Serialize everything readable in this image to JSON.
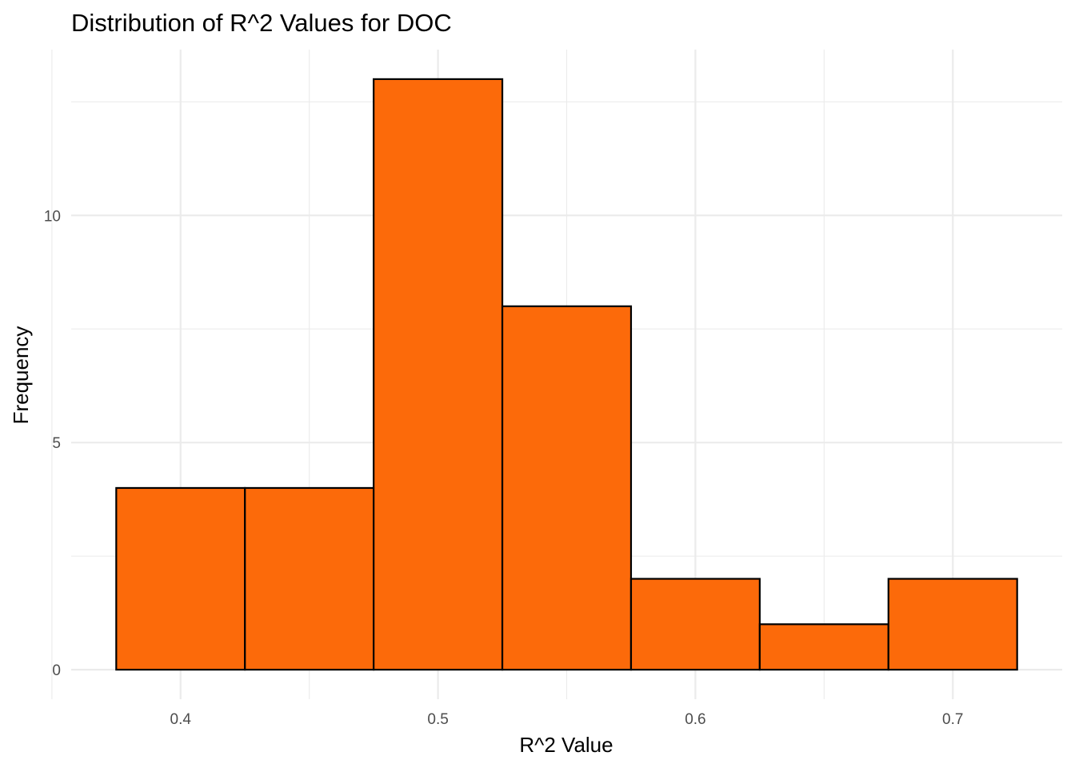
{
  "chart_data": {
    "type": "bar",
    "subtype": "histogram",
    "title": "Distribution of R^2 Values for DOC",
    "xlabel": "R^2 Value",
    "ylabel": "Frequency",
    "bins": [
      {
        "x_start": 0.375,
        "x_end": 0.425,
        "count": 4
      },
      {
        "x_start": 0.425,
        "x_end": 0.475,
        "count": 4
      },
      {
        "x_start": 0.475,
        "x_end": 0.525,
        "count": 13
      },
      {
        "x_start": 0.525,
        "x_end": 0.575,
        "count": 8
      },
      {
        "x_start": 0.575,
        "x_end": 0.625,
        "count": 2
      },
      {
        "x_start": 0.625,
        "x_end": 0.675,
        "count": 1
      },
      {
        "x_start": 0.675,
        "x_end": 0.725,
        "count": 2
      }
    ],
    "x_ticks": [
      {
        "value": 0.4,
        "label": "0.4"
      },
      {
        "value": 0.5,
        "label": "0.5"
      },
      {
        "value": 0.6,
        "label": "0.6"
      },
      {
        "value": 0.7,
        "label": "0.7"
      }
    ],
    "y_ticks": [
      {
        "value": 0,
        "label": "0"
      },
      {
        "value": 5,
        "label": "5"
      },
      {
        "value": 10,
        "label": "10"
      }
    ],
    "x_minor_ticks": [
      0.35,
      0.45,
      0.55,
      0.65
    ],
    "y_minor_ticks": [
      2.5,
      7.5,
      12.5
    ],
    "xlim": [
      0.3575,
      0.7425
    ],
    "ylim": [
      -0.65,
      13.65
    ],
    "grid": true,
    "legend": "none",
    "bar_fill": "#fc6a0a",
    "bar_outline": "#000000",
    "grid_color": "#ebebeb",
    "tick_label_color": "#4d4d4d",
    "background": "#ffffff"
  }
}
